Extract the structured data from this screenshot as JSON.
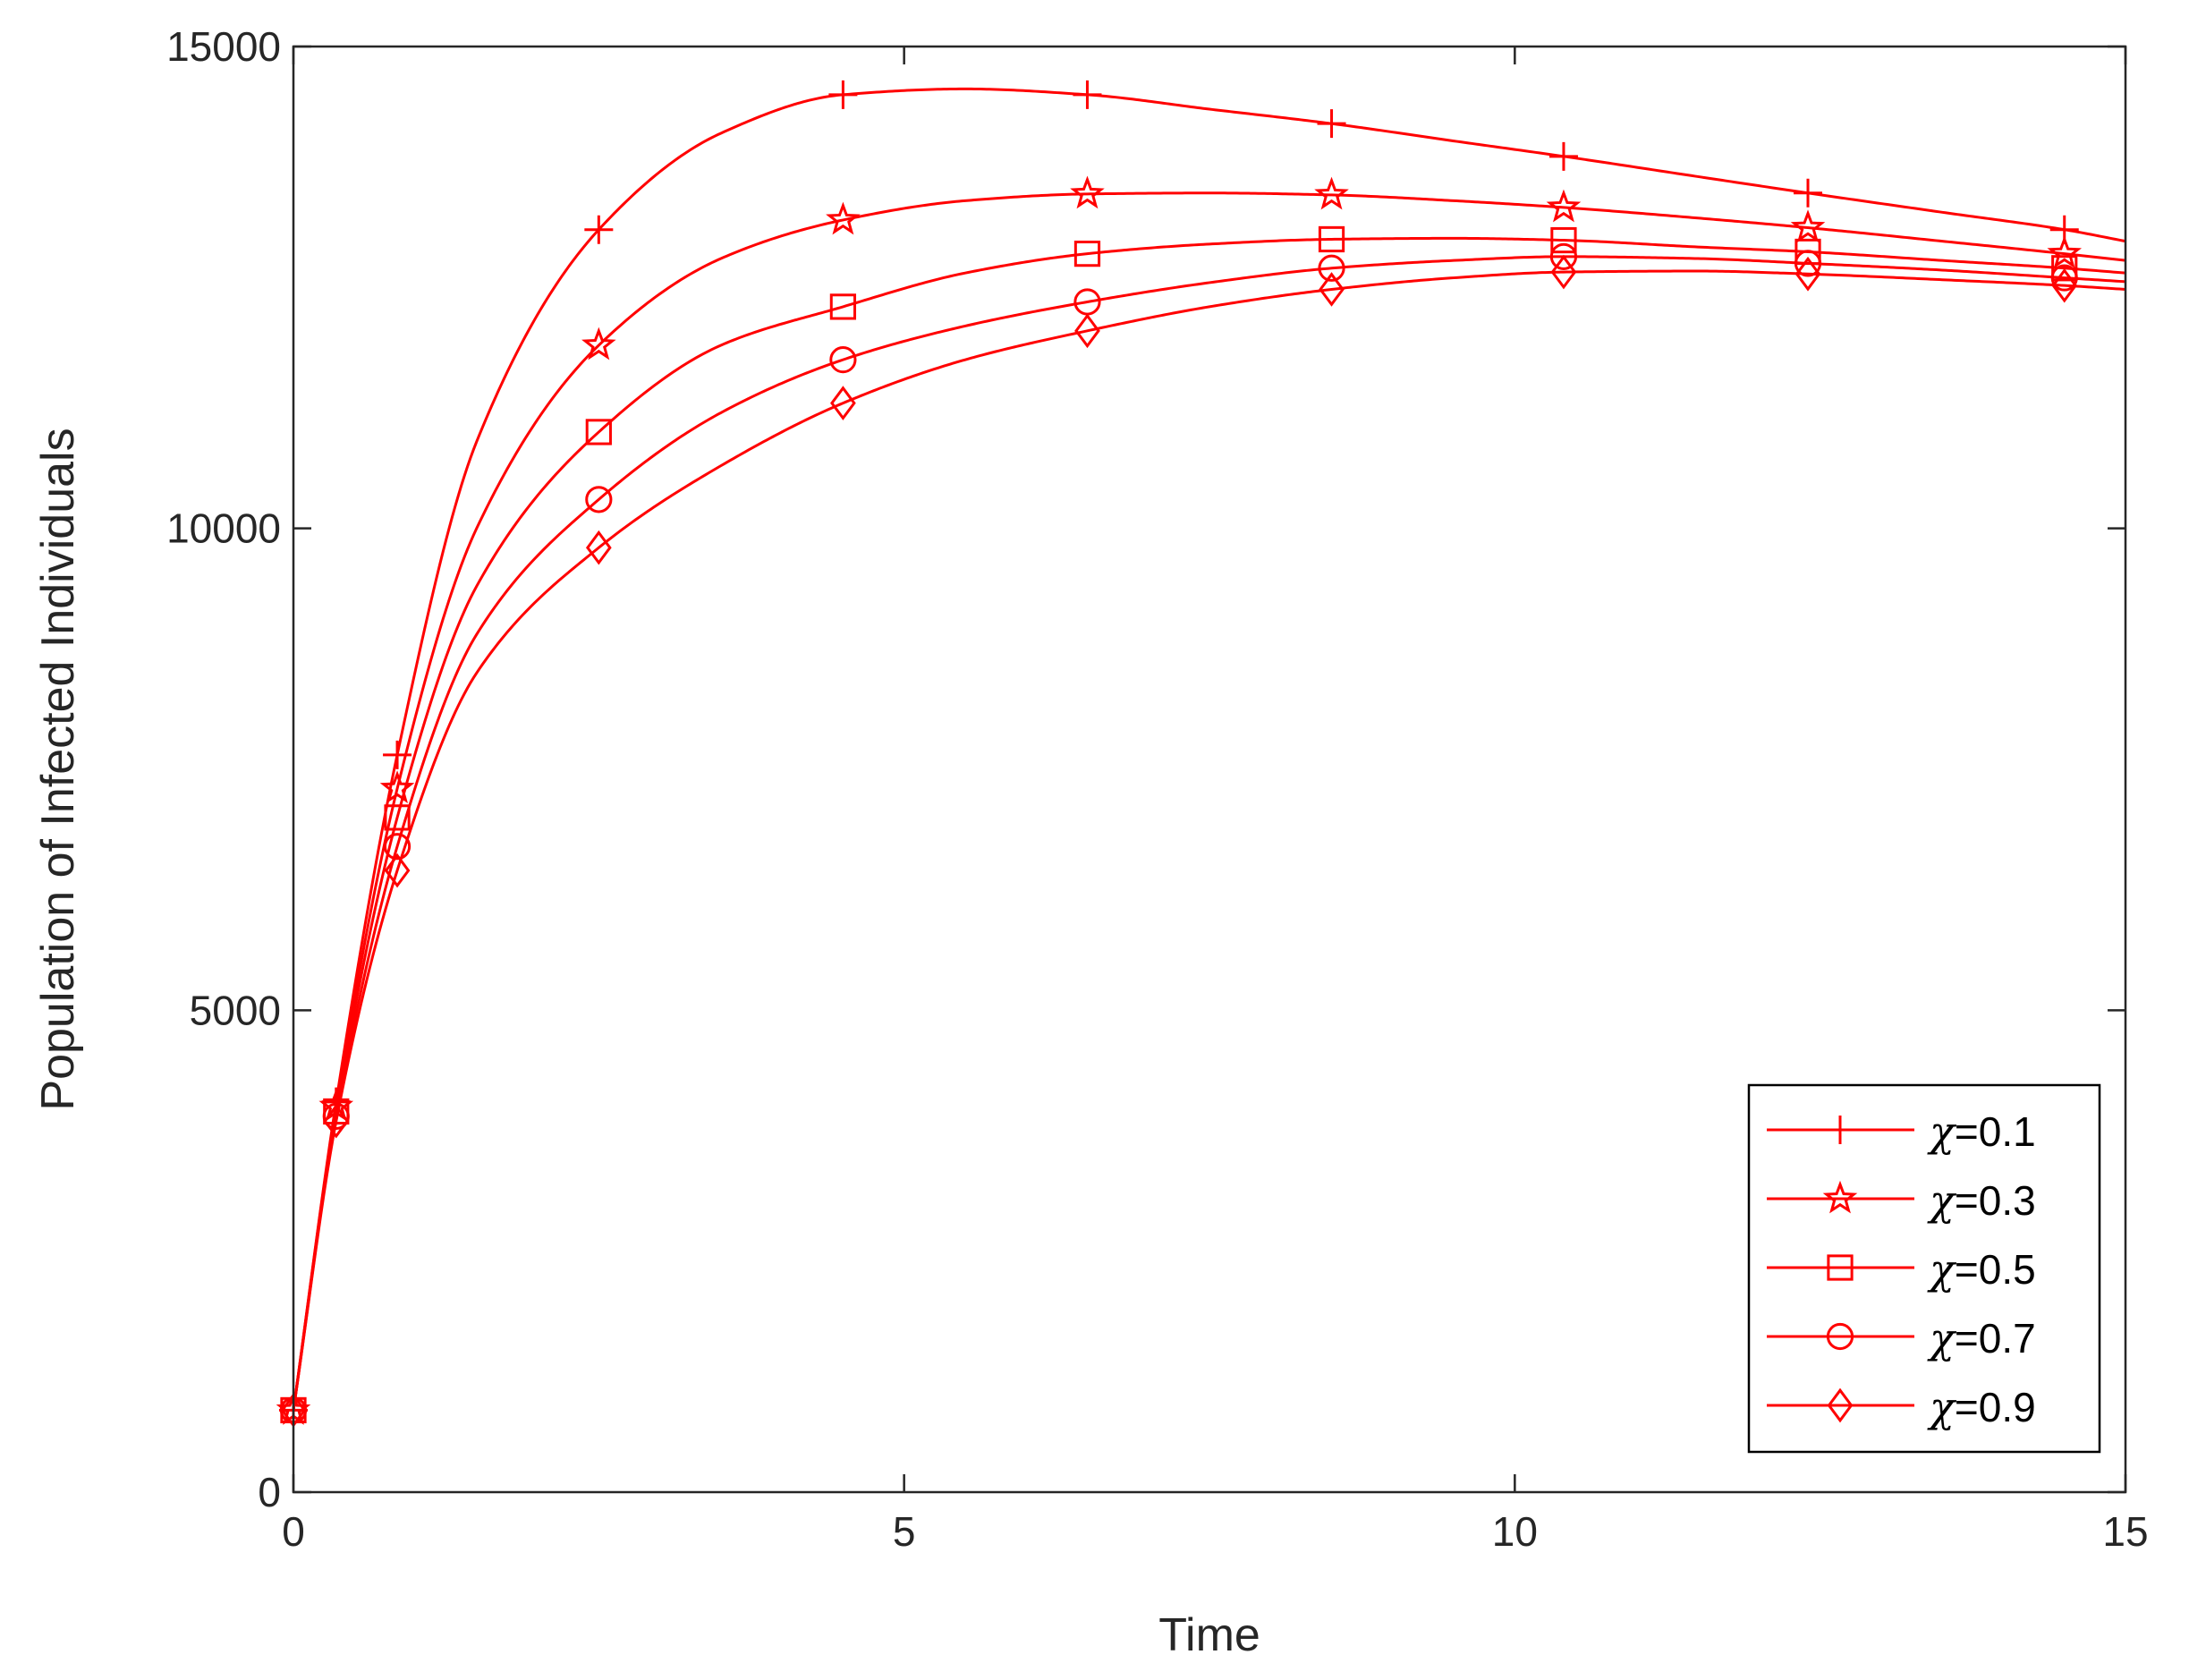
{
  "chart_data": {
    "type": "line",
    "xlabel": "Time",
    "ylabel": "Population of Infected Individuals",
    "xlim": [
      0,
      15
    ],
    "ylim": [
      0,
      15000
    ],
    "xticks": [
      0,
      5,
      10,
      15
    ],
    "yticks": [
      0,
      5000,
      10000,
      15000
    ],
    "xtick_labels": [
      "0",
      "5",
      "10",
      "15"
    ],
    "ytick_labels": [
      "0",
      "5000",
      "10000",
      "15000"
    ],
    "grid": false,
    "legend_position": "bottom-right",
    "line_color": "#ff0000",
    "series": [
      {
        "name": "χ=0.1",
        "legend_symbol": "χ",
        "legend_value": "=0.1",
        "marker": "plus",
        "x": [
          0,
          0.35,
          0.85,
          1.5,
          2.5,
          3.5,
          4.5,
          5.5,
          6.5,
          7.5,
          8.5,
          9.5,
          10.4,
          11.5,
          12.4,
          13.5,
          14.5,
          15
        ],
        "y": [
          850,
          4050,
          7650,
          10900,
          13100,
          14100,
          14500,
          14560,
          14500,
          14350,
          14200,
          14020,
          13860,
          13650,
          13480,
          13280,
          13100,
          12980
        ],
        "marker_x": [
          0,
          0.35,
          0.85,
          2.5,
          4.5,
          6.5,
          8.5,
          10.4,
          12.4,
          14.5
        ]
      },
      {
        "name": "χ=0.3",
        "legend_symbol": "χ",
        "legend_value": "=0.3",
        "marker": "star",
        "x": [
          0,
          0.35,
          0.85,
          1.5,
          2.5,
          3.5,
          4.5,
          5.5,
          6.5,
          7.5,
          8.5,
          9.5,
          10.4,
          11.5,
          12.4,
          13.5,
          14.5,
          15
        ],
        "y": [
          850,
          4000,
          7300,
          10000,
          11900,
          12800,
          13200,
          13400,
          13470,
          13480,
          13460,
          13400,
          13330,
          13220,
          13120,
          12980,
          12850,
          12780
        ],
        "marker_x": [
          0,
          0.35,
          0.85,
          2.5,
          4.5,
          6.5,
          8.5,
          10.4,
          12.4,
          14.5
        ]
      },
      {
        "name": "χ=0.5",
        "legend_symbol": "χ",
        "legend_value": "=0.5",
        "marker": "square",
        "x": [
          0,
          0.35,
          0.85,
          1.5,
          2.5,
          3.5,
          4.5,
          5.5,
          6.5,
          7.5,
          8.5,
          9.5,
          10.4,
          11.5,
          12.4,
          13.5,
          14.5,
          15
        ],
        "y": [
          850,
          3950,
          7000,
          9400,
          11000,
          11900,
          12300,
          12650,
          12850,
          12950,
          13000,
          13010,
          12990,
          12920,
          12870,
          12780,
          12700,
          12650
        ],
        "marker_x": [
          0,
          0.35,
          0.85,
          2.5,
          4.5,
          6.5,
          8.5,
          10.4,
          12.4,
          14.5
        ]
      },
      {
        "name": "χ=0.7",
        "legend_symbol": "χ",
        "legend_value": "=0.7",
        "marker": "circle",
        "x": [
          0,
          0.35,
          0.85,
          1.5,
          2.5,
          3.5,
          4.5,
          5.5,
          6.5,
          7.5,
          8.5,
          9.5,
          10.4,
          11.5,
          12.4,
          13.5,
          14.5,
          15
        ],
        "y": [
          850,
          3900,
          6700,
          8900,
          10300,
          11200,
          11750,
          12100,
          12350,
          12550,
          12700,
          12780,
          12820,
          12800,
          12750,
          12680,
          12600,
          12560
        ],
        "marker_x": [
          0,
          0.35,
          0.85,
          2.5,
          4.5,
          6.5,
          8.5,
          10.4,
          12.4,
          14.5
        ]
      },
      {
        "name": "χ=0.9",
        "legend_symbol": "χ",
        "legend_value": "=0.9",
        "marker": "diamond",
        "x": [
          0,
          0.35,
          0.85,
          1.5,
          2.5,
          3.5,
          4.5,
          5.5,
          6.5,
          7.5,
          8.5,
          9.5,
          10.4,
          11.5,
          12.4,
          13.5,
          14.5,
          15
        ],
        "y": [
          850,
          3850,
          6450,
          8500,
          9800,
          10650,
          11300,
          11750,
          12050,
          12300,
          12480,
          12600,
          12660,
          12670,
          12640,
          12580,
          12520,
          12480
        ],
        "marker_x": [
          0,
          0.35,
          0.85,
          2.5,
          4.5,
          6.5,
          8.5,
          10.4,
          12.4,
          14.5
        ]
      }
    ]
  }
}
